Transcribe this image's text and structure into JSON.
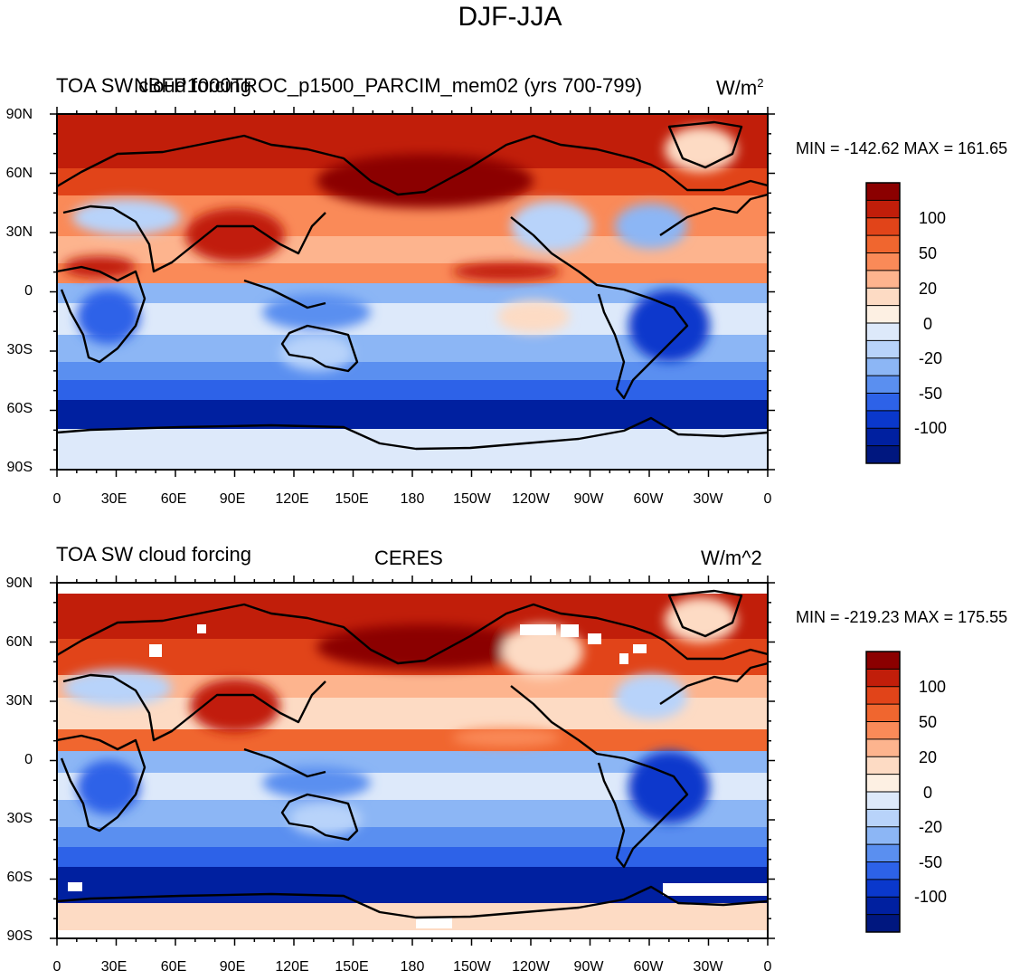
{
  "main_title": "DJF-JJA",
  "panels": [
    {
      "left_title": "TOA SW cloud forcing",
      "center_title": "NBFP1000TROC_p1500_PARCIM_mem02 (yrs 700-799)",
      "units": "W/m",
      "units_sup": "2",
      "stats": "MIN = -142.62 MAX = 161.65"
    },
    {
      "left_title": "TOA SW cloud forcing",
      "center_title": "CERES",
      "units": "W/m^2",
      "units_sup": "",
      "stats": "MIN = -219.23 MAX = 175.55"
    }
  ],
  "axes": {
    "lon_labels": [
      "0",
      "30E",
      "60E",
      "90E",
      "120E",
      "150E",
      "180",
      "150W",
      "120W",
      "90W",
      "60W",
      "30W",
      "0"
    ],
    "lat_labels": [
      "90N",
      "60N",
      "30N",
      "0",
      "30S",
      "60S",
      "90S"
    ]
  },
  "colorbar": {
    "labels": [
      "100",
      "50",
      "20",
      "0",
      "-20",
      "-50",
      "-100"
    ],
    "colors": [
      "#8b0000",
      "#c11e0a",
      "#e14419",
      "#f0662f",
      "#fa8a58",
      "#fdb48e",
      "#fddbc4",
      "#fdf0e3",
      "#dde9fa",
      "#b8d3fa",
      "#8cb6f5",
      "#5a8ff0",
      "#2d62e8",
      "#0a38cc",
      "#0020a0",
      "#00177f"
    ]
  }
}
